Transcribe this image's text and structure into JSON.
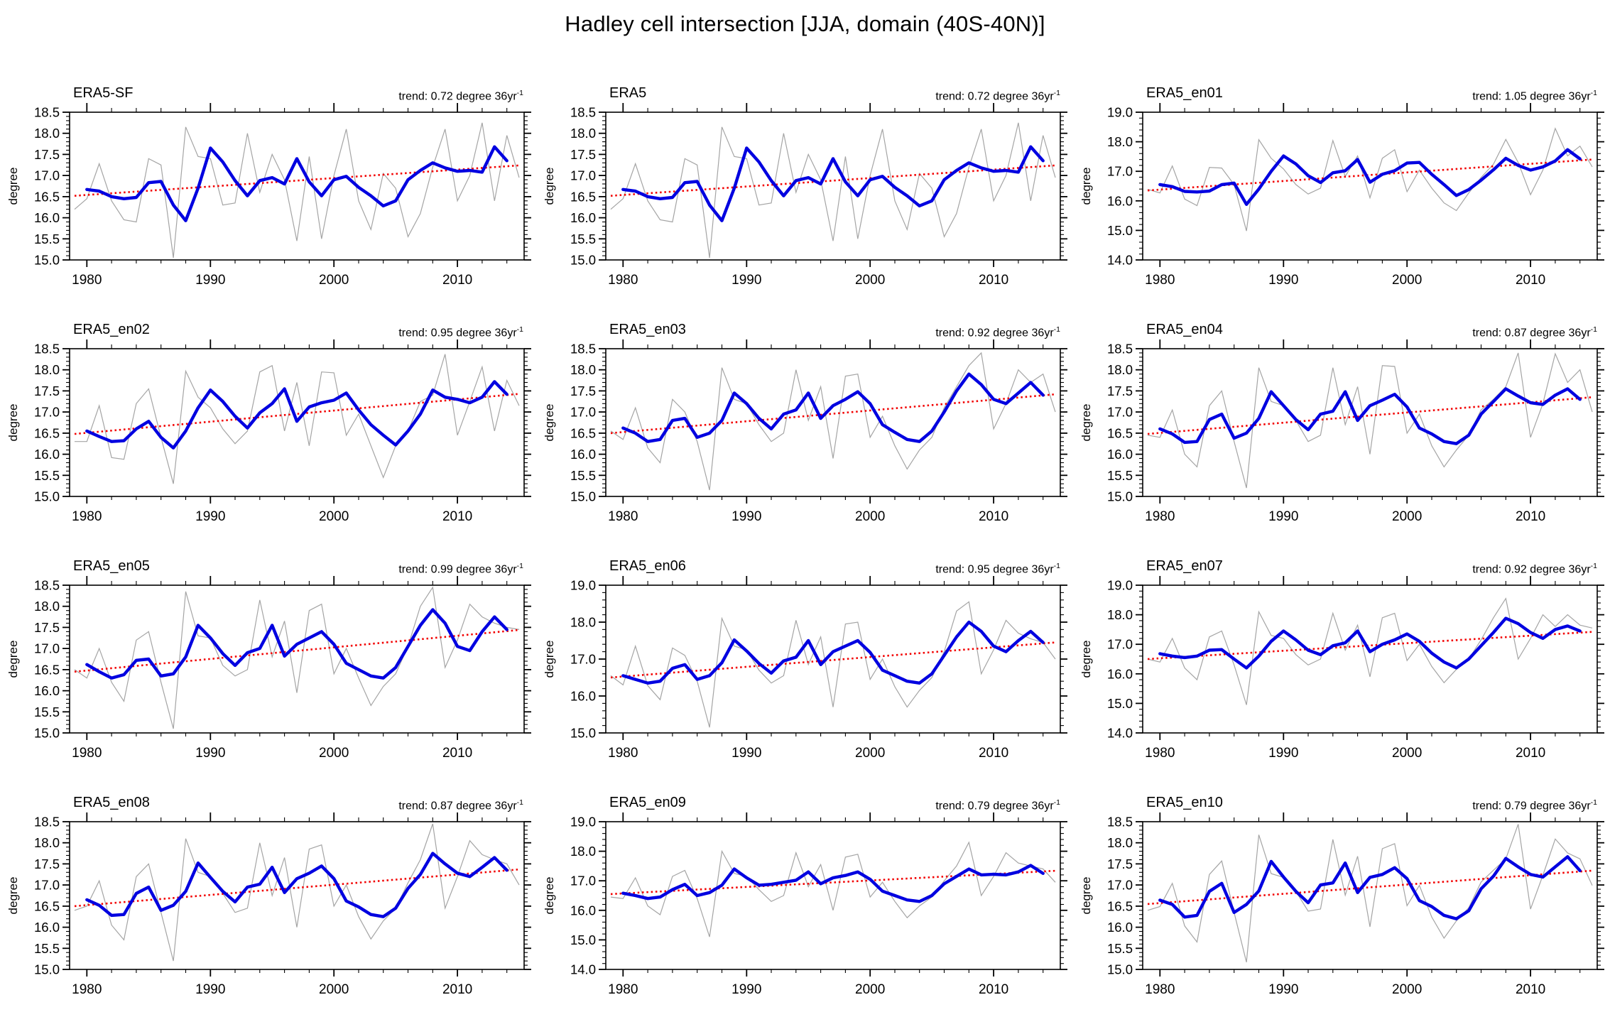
{
  "page_title": "Hadley cell intersection [JJA, domain (40S-40N)]",
  "axis": {
    "ylabel": "degree",
    "x_tick_labels": [
      "1980",
      "1990",
      "2000",
      "2010"
    ],
    "x_major_ticks": [
      1980,
      1990,
      2000,
      2010
    ],
    "x_minor_step_years": 2,
    "year_start": 1979,
    "year_end": 2015,
    "grid": "off",
    "legend": "none"
  },
  "colors": {
    "annual": "#a4a4a4",
    "smooth": "#0000e0",
    "trend": "#f20000",
    "axis": "#000000",
    "background": "#ffffff"
  },
  "chart_data": [
    {
      "type": "line",
      "title": "ERA5-SF",
      "trend_text": "trend: 0.72 degree 36yr",
      "trend_sup": "-1",
      "trend_degree_per_36yr": 0.72,
      "ylim": [
        15.0,
        18.5
      ],
      "ystep": 0.5,
      "y_tick_labels": [
        "15.0",
        "15.5",
        "16.0",
        "16.5",
        "17.0",
        "17.5",
        "18.0",
        "18.5"
      ],
      "trend_line": [
        16.52,
        17.24
      ],
      "annual_start_year": 1979,
      "annual": [
        16.2,
        16.45,
        17.28,
        16.4,
        15.95,
        15.9,
        17.4,
        17.25,
        15.05,
        18.15,
        17.45,
        17.4,
        16.3,
        16.35,
        18.0,
        16.6,
        17.5,
        16.9,
        15.45,
        17.45,
        15.5,
        17.0,
        18.1,
        16.4,
        15.72,
        17.05,
        16.7,
        15.55,
        16.1,
        17.2,
        18.1,
        16.4,
        17.0,
        18.25,
        16.4,
        17.95,
        16.95
      ],
      "smooth_start_year": 1980,
      "smooth": [
        16.67,
        16.63,
        16.5,
        16.45,
        16.48,
        16.83,
        16.86,
        16.3,
        15.93,
        16.7,
        17.65,
        17.32,
        16.88,
        16.52,
        16.88,
        16.95,
        16.8,
        17.4,
        16.85,
        16.52,
        16.9,
        16.98,
        16.72,
        16.52,
        16.28,
        16.4,
        16.9,
        17.12,
        17.3,
        17.18,
        17.1,
        17.12,
        17.08,
        17.68,
        17.35
      ]
    },
    {
      "type": "line",
      "title": "ERA5",
      "trend_text": "trend: 0.72 degree 36yr",
      "trend_sup": "-1",
      "trend_degree_per_36yr": 0.72,
      "ylim": [
        15.0,
        18.5
      ],
      "ystep": 0.5,
      "y_tick_labels": [
        "15.0",
        "15.5",
        "16.0",
        "16.5",
        "17.0",
        "17.5",
        "18.0",
        "18.5"
      ],
      "trend_line": [
        16.52,
        17.24
      ],
      "annual_start_year": 1979,
      "annual": [
        16.2,
        16.45,
        17.28,
        16.4,
        15.95,
        15.9,
        17.4,
        17.25,
        15.05,
        18.15,
        17.45,
        17.4,
        16.3,
        16.35,
        18.0,
        16.6,
        17.5,
        16.9,
        15.45,
        17.45,
        15.5,
        17.0,
        18.1,
        16.4,
        15.72,
        17.05,
        16.7,
        15.55,
        16.1,
        17.2,
        18.1,
        16.4,
        17.0,
        18.25,
        16.4,
        17.95,
        16.95
      ],
      "smooth_start_year": 1980,
      "smooth": [
        16.67,
        16.63,
        16.5,
        16.45,
        16.48,
        16.83,
        16.86,
        16.3,
        15.93,
        16.7,
        17.65,
        17.32,
        16.88,
        16.52,
        16.88,
        16.95,
        16.8,
        17.4,
        16.85,
        16.52,
        16.9,
        16.98,
        16.72,
        16.52,
        16.28,
        16.4,
        16.9,
        17.12,
        17.3,
        17.18,
        17.1,
        17.12,
        17.08,
        17.68,
        17.35
      ]
    },
    {
      "type": "line",
      "title": "ERA5_en01",
      "trend_text": "trend: 1.05 degree 36yr",
      "trend_sup": "-1",
      "trend_degree_per_36yr": 1.05,
      "ylim": [
        14.0,
        19.0
      ],
      "ystep": 1.0,
      "y_tick_labels": [
        "14.0",
        "15.0",
        "16.0",
        "17.0",
        "18.0",
        "19.0"
      ],
      "trend_line": [
        16.35,
        17.4
      ],
      "annual_start_year": 1979,
      "annual": [
        16.39,
        16.27,
        17.18,
        16.06,
        15.84,
        17.13,
        17.11,
        16.55,
        14.98,
        18.07,
        17.44,
        17.08,
        16.55,
        16.23,
        16.43,
        18.04,
        16.83,
        17.52,
        16.1,
        17.44,
        17.73,
        16.31,
        17.04,
        16.43,
        15.93,
        15.67,
        16.27,
        16.79,
        17.24,
        18.08,
        17.3,
        16.21,
        17.04,
        18.45,
        17.52,
        17.85,
        17.15
      ],
      "smooth_start_year": 1980,
      "smooth": [
        16.55,
        16.48,
        16.32,
        16.3,
        16.33,
        16.55,
        16.6,
        15.88,
        16.4,
        17.0,
        17.52,
        17.25,
        16.85,
        16.62,
        16.95,
        17.02,
        17.4,
        16.63,
        16.9,
        17.02,
        17.28,
        17.3,
        16.9,
        16.55,
        16.18,
        16.38,
        16.7,
        17.05,
        17.44,
        17.2,
        17.04,
        17.15,
        17.35,
        17.73,
        17.42
      ]
    },
    {
      "type": "line",
      "title": "ERA5_en02",
      "trend_text": "trend: 0.95 degree 36yr",
      "trend_sup": "-1",
      "trend_degree_per_36yr": 0.95,
      "ylim": [
        15.0,
        18.5
      ],
      "ystep": 0.5,
      "y_tick_labels": [
        "15.0",
        "15.5",
        "16.0",
        "16.5",
        "17.0",
        "17.5",
        "18.0",
        "18.5"
      ],
      "trend_line": [
        16.48,
        17.43
      ],
      "annual_start_year": 1979,
      "annual": [
        16.3,
        16.3,
        17.15,
        15.92,
        15.88,
        17.2,
        17.55,
        16.4,
        15.3,
        17.97,
        17.35,
        17.1,
        16.6,
        16.25,
        16.55,
        17.95,
        18.1,
        16.55,
        17.7,
        16.2,
        17.95,
        17.93,
        16.45,
        16.95,
        16.2,
        15.45,
        16.2,
        16.55,
        17.25,
        17.4,
        18.37,
        16.45,
        17.25,
        18.07,
        16.55,
        17.75,
        17.15
      ],
      "smooth_start_year": 1980,
      "smooth": [
        16.55,
        16.42,
        16.3,
        16.32,
        16.6,
        16.78,
        16.4,
        16.15,
        16.55,
        17.1,
        17.52,
        17.25,
        16.9,
        16.62,
        16.98,
        17.2,
        17.55,
        16.78,
        17.12,
        17.22,
        17.28,
        17.45,
        17.05,
        16.7,
        16.45,
        16.22,
        16.55,
        16.95,
        17.52,
        17.35,
        17.3,
        17.22,
        17.35,
        17.72,
        17.42
      ]
    },
    {
      "type": "line",
      "title": "ERA5_en03",
      "trend_text": "trend: 0.92 degree 36yr",
      "trend_sup": "-1",
      "trend_degree_per_36yr": 0.92,
      "ylim": [
        15.0,
        18.5
      ],
      "ystep": 0.5,
      "y_tick_labels": [
        "15.0",
        "15.5",
        "16.0",
        "16.5",
        "17.0",
        "17.5",
        "18.0",
        "18.5"
      ],
      "trend_line": [
        16.5,
        17.42
      ],
      "annual_start_year": 1979,
      "annual": [
        16.55,
        16.35,
        17.1,
        16.15,
        15.8,
        17.3,
        17.0,
        16.3,
        15.15,
        18.05,
        17.3,
        17.2,
        16.7,
        16.3,
        16.5,
        18.0,
        16.8,
        17.6,
        15.9,
        17.85,
        17.9,
        16.4,
        16.9,
        16.2,
        15.65,
        16.1,
        16.4,
        17.1,
        17.6,
        18.1,
        18.4,
        16.6,
        17.2,
        18.0,
        17.7,
        17.9,
        17.0
      ],
      "smooth_start_year": 1980,
      "smooth": [
        16.62,
        16.5,
        16.3,
        16.35,
        16.8,
        16.85,
        16.4,
        16.5,
        16.8,
        17.45,
        17.2,
        16.85,
        16.6,
        16.95,
        17.05,
        17.45,
        16.85,
        17.15,
        17.3,
        17.48,
        17.2,
        16.7,
        16.52,
        16.35,
        16.3,
        16.55,
        17.0,
        17.5,
        17.9,
        17.65,
        17.3,
        17.2,
        17.45,
        17.7,
        17.4
      ]
    },
    {
      "type": "line",
      "title": "ERA5_en04",
      "trend_text": "trend: 0.87 degree 36yr",
      "trend_sup": "-1",
      "trend_degree_per_36yr": 0.87,
      "ylim": [
        15.0,
        18.5
      ],
      "ystep": 0.5,
      "y_tick_labels": [
        "15.0",
        "15.5",
        "16.0",
        "16.5",
        "17.0",
        "17.5",
        "18.0",
        "18.5"
      ],
      "trend_line": [
        16.48,
        17.35
      ],
      "annual_start_year": 1979,
      "annual": [
        16.45,
        16.4,
        17.05,
        16.0,
        15.7,
        17.15,
        17.5,
        16.3,
        15.2,
        18.05,
        17.25,
        17.15,
        16.8,
        16.3,
        16.45,
        18.05,
        16.7,
        17.6,
        16.0,
        18.1,
        18.08,
        16.5,
        16.95,
        16.2,
        15.7,
        16.1,
        16.45,
        17.05,
        17.3,
        17.6,
        18.4,
        16.4,
        17.2,
        18.38,
        17.7,
        18.0,
        17.0
      ],
      "smooth_start_year": 1980,
      "smooth": [
        16.6,
        16.48,
        16.28,
        16.3,
        16.82,
        16.95,
        16.38,
        16.5,
        16.85,
        17.48,
        17.15,
        16.82,
        16.58,
        16.95,
        17.02,
        17.48,
        16.8,
        17.15,
        17.28,
        17.42,
        17.12,
        16.62,
        16.48,
        16.3,
        16.25,
        16.45,
        16.95,
        17.25,
        17.55,
        17.38,
        17.22,
        17.18,
        17.4,
        17.55,
        17.3
      ]
    },
    {
      "type": "line",
      "title": "ERA5_en05",
      "trend_text": "trend: 0.99 degree 36yr",
      "trend_sup": "-1",
      "trend_degree_per_36yr": 0.99,
      "ylim": [
        15.0,
        18.5
      ],
      "ystep": 0.5,
      "y_tick_labels": [
        "15.0",
        "15.5",
        "16.0",
        "16.5",
        "17.0",
        "17.5",
        "18.0",
        "18.5"
      ],
      "trend_line": [
        16.45,
        17.44
      ],
      "annual_start_year": 1979,
      "annual": [
        16.5,
        16.3,
        17.0,
        16.2,
        15.75,
        17.2,
        17.4,
        16.2,
        15.1,
        18.35,
        17.3,
        17.25,
        16.6,
        16.35,
        16.5,
        18.15,
        16.8,
        17.65,
        15.95,
        17.9,
        18.05,
        16.4,
        17.0,
        16.3,
        15.65,
        16.1,
        16.4,
        17.05,
        18.0,
        18.45,
        16.55,
        17.2,
        18.05,
        17.75,
        17.6,
        17.5,
        17.45
      ],
      "smooth_start_year": 1980,
      "smooth": [
        16.62,
        16.45,
        16.3,
        16.38,
        16.72,
        16.75,
        16.35,
        16.4,
        16.8,
        17.55,
        17.25,
        16.88,
        16.6,
        16.9,
        17.0,
        17.55,
        16.82,
        17.1,
        17.25,
        17.4,
        17.1,
        16.65,
        16.5,
        16.35,
        16.3,
        16.55,
        17.05,
        17.55,
        17.92,
        17.6,
        17.05,
        16.95,
        17.4,
        17.75,
        17.45
      ]
    },
    {
      "type": "line",
      "title": "ERA5_en06",
      "trend_text": "trend: 0.95 degree 36yr",
      "trend_sup": "-1",
      "trend_degree_per_36yr": 0.95,
      "ylim": [
        15.0,
        19.0
      ],
      "ystep": 1.0,
      "y_tick_labels": [
        "15.0",
        "16.0",
        "17.0",
        "18.0",
        "19.0"
      ],
      "trend_line": [
        16.5,
        17.45
      ],
      "annual_start_year": 1979,
      "annual": [
        16.55,
        16.3,
        17.35,
        16.28,
        15.9,
        17.3,
        17.1,
        16.4,
        15.15,
        18.1,
        17.35,
        17.25,
        16.7,
        16.35,
        16.55,
        18.05,
        16.85,
        17.6,
        15.7,
        17.95,
        18.0,
        16.45,
        17.0,
        16.25,
        15.7,
        16.15,
        16.5,
        17.2,
        18.3,
        18.55,
        16.6,
        17.25,
        18.05,
        17.7,
        17.55,
        17.45,
        17.0
      ],
      "smooth_start_year": 1980,
      "smooth": [
        16.55,
        16.45,
        16.35,
        16.4,
        16.75,
        16.85,
        16.45,
        16.55,
        16.9,
        17.52,
        17.22,
        16.88,
        16.62,
        16.95,
        17.05,
        17.5,
        16.85,
        17.2,
        17.35,
        17.5,
        17.18,
        16.7,
        16.55,
        16.4,
        16.35,
        16.6,
        17.1,
        17.6,
        18.0,
        17.75,
        17.35,
        17.2,
        17.5,
        17.75,
        17.45
      ]
    },
    {
      "type": "line",
      "title": "ERA5_en07",
      "trend_text": "trend: 0.92 degree 36yr",
      "trend_sup": "-1",
      "trend_degree_per_36yr": 0.92,
      "ylim": [
        14.0,
        19.0
      ],
      "ystep": 1.0,
      "y_tick_labels": [
        "14.0",
        "15.0",
        "16.0",
        "17.0",
        "18.0",
        "19.0"
      ],
      "trend_line": [
        16.5,
        17.42
      ],
      "annual_start_year": 1979,
      "annual": [
        16.5,
        16.4,
        17.2,
        16.2,
        15.8,
        17.25,
        17.45,
        16.3,
        14.95,
        18.1,
        17.3,
        17.2,
        16.65,
        16.3,
        16.5,
        18.05,
        16.8,
        17.65,
        15.9,
        17.9,
        18.05,
        16.45,
        17.0,
        16.25,
        15.7,
        16.15,
        16.5,
        17.15,
        17.9,
        18.55,
        16.5,
        17.2,
        18.0,
        17.6,
        18.0,
        17.65,
        17.55
      ],
      "smooth_start_year": 1980,
      "smooth": [
        16.68,
        16.6,
        16.55,
        16.6,
        16.8,
        16.82,
        16.5,
        16.2,
        16.6,
        17.1,
        17.45,
        17.15,
        16.8,
        16.65,
        16.95,
        17.05,
        17.45,
        16.75,
        17.0,
        17.15,
        17.35,
        17.1,
        16.7,
        16.4,
        16.2,
        16.5,
        16.95,
        17.4,
        17.88,
        17.7,
        17.4,
        17.2,
        17.5,
        17.62,
        17.45
      ]
    },
    {
      "type": "line",
      "title": "ERA5_en08",
      "trend_text": "trend: 0.87 degree 36yr",
      "trend_sup": "-1",
      "trend_degree_per_36yr": 0.87,
      "ylim": [
        15.0,
        18.5
      ],
      "ystep": 0.5,
      "y_tick_labels": [
        "15.0",
        "15.5",
        "16.0",
        "16.5",
        "17.0",
        "17.5",
        "18.0",
        "18.5"
      ],
      "trend_line": [
        16.5,
        17.37
      ],
      "annual_start_year": 1979,
      "annual": [
        16.4,
        16.5,
        17.1,
        16.05,
        15.7,
        17.2,
        17.5,
        16.35,
        15.2,
        18.1,
        17.3,
        17.2,
        16.8,
        16.35,
        16.45,
        18.0,
        16.75,
        17.65,
        16.0,
        17.85,
        17.95,
        16.5,
        17.0,
        16.25,
        15.72,
        16.15,
        16.45,
        17.05,
        17.6,
        18.45,
        16.45,
        17.2,
        18.05,
        17.72,
        17.6,
        17.5,
        17.0
      ],
      "smooth_start_year": 1980,
      "smooth": [
        16.65,
        16.52,
        16.28,
        16.3,
        16.8,
        16.95,
        16.4,
        16.52,
        16.85,
        17.52,
        17.18,
        16.85,
        16.6,
        16.95,
        17.02,
        17.42,
        16.82,
        17.15,
        17.28,
        17.45,
        17.15,
        16.62,
        16.48,
        16.3,
        16.25,
        16.45,
        16.92,
        17.25,
        17.75,
        17.5,
        17.28,
        17.2,
        17.42,
        17.65,
        17.35
      ]
    },
    {
      "type": "line",
      "title": "ERA5_en09",
      "trend_text": "trend: 0.79 degree 36yr",
      "trend_sup": "-1",
      "trend_degree_per_36yr": 0.79,
      "ylim": [
        14.0,
        19.0
      ],
      "ystep": 1.0,
      "y_tick_labels": [
        "14.0",
        "15.0",
        "16.0",
        "17.0",
        "18.0",
        "19.0"
      ],
      "trend_line": [
        16.55,
        17.34
      ],
      "annual_start_year": 1979,
      "annual": [
        16.45,
        16.4,
        17.1,
        16.15,
        15.85,
        17.15,
        17.35,
        16.4,
        15.1,
        18.0,
        17.25,
        17.15,
        16.7,
        16.3,
        16.5,
        17.95,
        16.8,
        17.55,
        16.0,
        17.8,
        17.9,
        16.45,
        16.95,
        16.3,
        15.75,
        16.15,
        16.45,
        17.0,
        17.5,
        18.3,
        16.5,
        17.15,
        17.95,
        17.6,
        17.5,
        17.4,
        16.95
      ],
      "smooth_start_year": 1980,
      "smooth": [
        16.58,
        16.5,
        16.4,
        16.45,
        16.7,
        16.88,
        16.5,
        16.6,
        16.85,
        17.4,
        17.1,
        16.85,
        16.88,
        16.95,
        17.02,
        17.3,
        16.9,
        17.1,
        17.18,
        17.3,
        17.05,
        16.65,
        16.5,
        16.35,
        16.3,
        16.5,
        16.9,
        17.15,
        17.4,
        17.2,
        17.22,
        17.2,
        17.3,
        17.52,
        17.25
      ]
    },
    {
      "type": "line",
      "title": "ERA5_en10",
      "trend_text": "trend: 0.79 degree 36yr",
      "trend_sup": "-1",
      "trend_degree_per_36yr": 0.79,
      "ylim": [
        15.0,
        18.5
      ],
      "ystep": 0.5,
      "y_tick_labels": [
        "15.0",
        "15.5",
        "16.0",
        "16.5",
        "17.0",
        "17.5",
        "18.0",
        "18.5"
      ],
      "trend_line": [
        16.55,
        17.34
      ],
      "annual_start_year": 1979,
      "annual": [
        16.4,
        16.49,
        17.04,
        16.03,
        15.65,
        17.25,
        17.57,
        16.35,
        15.17,
        18.19,
        17.27,
        17.18,
        16.85,
        16.38,
        16.43,
        18.08,
        16.76,
        17.68,
        16.01,
        17.86,
        17.98,
        16.51,
        16.99,
        16.24,
        15.74,
        16.15,
        16.46,
        17.07,
        17.35,
        17.62,
        18.44,
        16.43,
        17.23,
        18.09,
        17.76,
        17.62,
        16.99
      ],
      "smooth_start_year": 1980,
      "smooth": [
        16.64,
        16.54,
        16.24,
        16.28,
        16.85,
        17.04,
        16.35,
        16.54,
        16.86,
        17.56,
        17.19,
        16.85,
        16.58,
        17.0,
        17.05,
        17.52,
        16.82,
        17.18,
        17.25,
        17.41,
        17.15,
        16.63,
        16.49,
        16.28,
        16.2,
        16.39,
        16.91,
        17.21,
        17.63,
        17.43,
        17.25,
        17.19,
        17.43,
        17.67,
        17.34
      ]
    }
  ]
}
